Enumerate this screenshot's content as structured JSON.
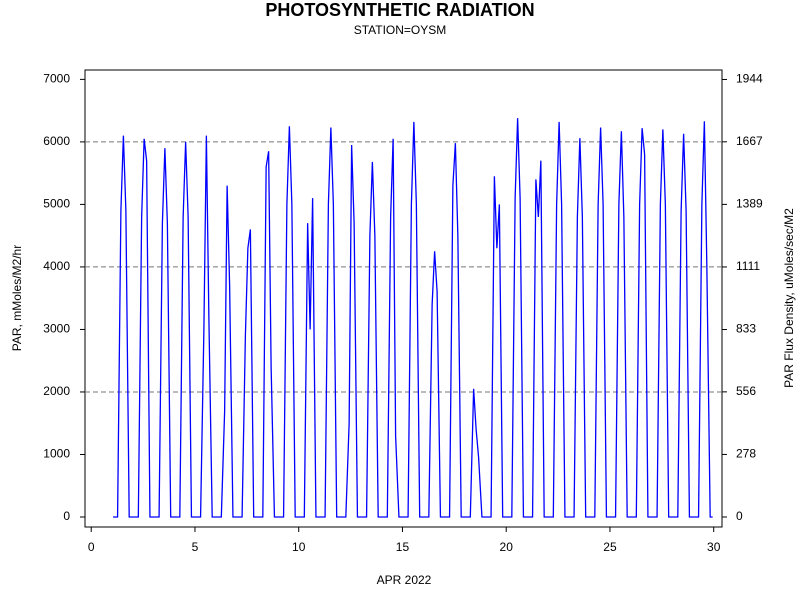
{
  "chart_data": {
    "type": "line",
    "title": "PHOTOSYNTHETIC RADIATION",
    "subtitle": "STATION=OYSM",
    "x_label": "APR 2022",
    "y_label": "PAR, mMoles/M2/hr",
    "y2_label": "PAR Flux Density, uMoles/sec/M2",
    "xlim": [
      -0.3,
      30.4
    ],
    "xticks": [
      0,
      5,
      10,
      15,
      20,
      25,
      30
    ],
    "ylim": [
      -160,
      7150
    ],
    "yticks": [
      0,
      1000,
      2000,
      3000,
      4000,
      5000,
      6000,
      7000
    ],
    "y2lim": [
      -44.4,
      1986.1
    ],
    "y2ticks": [
      0,
      278,
      556,
      833,
      1111,
      1389,
      1667,
      1944
    ],
    "grid_lines": [
      2000,
      4000,
      6000
    ],
    "x": [
      1.05,
      1.27,
      1.43,
      1.55,
      1.67,
      1.83,
      2.27,
      2.43,
      2.55,
      2.67,
      2.83,
      3.27,
      3.43,
      3.55,
      3.67,
      3.83,
      4.27,
      4.43,
      4.55,
      4.67,
      4.83,
      5.27,
      5.43,
      5.55,
      5.67,
      5.83,
      6.27,
      6.43,
      6.55,
      6.67,
      6.83,
      7.27,
      7.43,
      7.55,
      7.67,
      7.83,
      8.27,
      8.43,
      8.55,
      8.67,
      8.83,
      9.27,
      9.43,
      9.55,
      9.67,
      9.83,
      10.27,
      10.43,
      10.55,
      10.67,
      10.83,
      11.27,
      11.43,
      11.55,
      11.67,
      11.83,
      12.27,
      12.43,
      12.55,
      12.67,
      12.83,
      13.27,
      13.43,
      13.55,
      13.67,
      13.83,
      14.27,
      14.43,
      14.55,
      14.67,
      14.83,
      15.27,
      15.43,
      15.55,
      15.67,
      15.83,
      16.27,
      16.43,
      16.55,
      16.67,
      16.83,
      17.27,
      17.43,
      17.55,
      17.67,
      17.83,
      18.27,
      18.43,
      18.55,
      18.67,
      18.83,
      19.27,
      19.43,
      19.55,
      19.67,
      19.83,
      20.27,
      20.43,
      20.55,
      20.67,
      20.83,
      21.27,
      21.43,
      21.55,
      21.67,
      21.83,
      22.27,
      22.43,
      22.55,
      22.67,
      22.83,
      23.27,
      23.43,
      23.55,
      23.67,
      23.83,
      24.27,
      24.43,
      24.55,
      24.67,
      24.83,
      25.27,
      25.43,
      25.55,
      25.67,
      25.83,
      26.27,
      26.43,
      26.55,
      26.67,
      26.83,
      27.27,
      27.43,
      27.55,
      27.67,
      27.83,
      28.27,
      28.43,
      28.55,
      28.67,
      28.83,
      29.27,
      29.43,
      29.55,
      29.67,
      29.83,
      29.95
    ],
    "series": [
      {
        "color": "#0000ff",
        "values": [
          0,
          0,
          4900,
          6100,
          4900,
          0,
          0,
          4800,
          6050,
          5700,
          0,
          0,
          4700,
          5900,
          4700,
          0,
          0,
          4800,
          6000,
          4800,
          0,
          0,
          3000,
          6100,
          3200,
          0,
          0,
          1700,
          5300,
          3700,
          0,
          0,
          2900,
          4300,
          4600,
          0,
          0,
          5600,
          5850,
          2400,
          0,
          0,
          5000,
          6250,
          5000,
          0,
          0,
          4700,
          3000,
          5100,
          0,
          0,
          5000,
          6230,
          5000,
          0,
          0,
          1500,
          5950,
          4700,
          0,
          0,
          4500,
          5680,
          4500,
          0,
          0,
          4800,
          6050,
          1300,
          0,
          0,
          5000,
          6320,
          5000,
          0,
          0,
          3400,
          4250,
          3600,
          0,
          0,
          5300,
          5980,
          4500,
          0,
          0,
          2050,
          1400,
          950,
          0,
          0,
          5450,
          4300,
          5000,
          0,
          0,
          5100,
          6380,
          5100,
          0,
          0,
          5400,
          4800,
          5700,
          0,
          0,
          5000,
          6320,
          5000,
          0,
          0,
          4800,
          6060,
          4800,
          0,
          0,
          5000,
          6230,
          5000,
          0,
          0,
          5000,
          6170,
          4800,
          0,
          0,
          5000,
          6220,
          5800,
          0,
          0,
          5000,
          6200,
          5000,
          0,
          0,
          4900,
          6130,
          4900,
          0,
          0,
          5000,
          6330,
          4000,
          0,
          0
        ]
      }
    ]
  }
}
